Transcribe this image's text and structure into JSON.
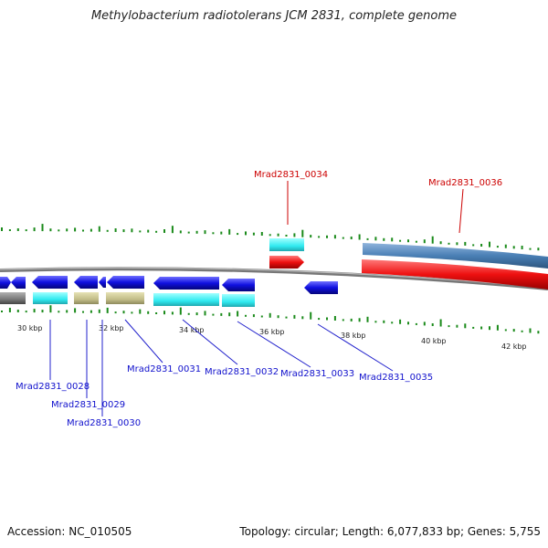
{
  "title": "Methylobacterium radiotolerans JCM 2831, complete genome",
  "footer": {
    "accession": "Accession: NC_010505",
    "summary": "Topology: circular; Length: 6,077,833 bp; Genes: 5,755"
  },
  "colors": {
    "forward_gene": "#1010e0",
    "cds_cyan": "#33ecf2",
    "cds_khaki": "#c6c28c",
    "cds_gray": "#7a7a7a",
    "highlight_red": "#ee1010",
    "steelblue": "#4a7fb5",
    "gc_tick": "#1a8a1a",
    "label_blue": "#1010cc",
    "label_red": "#cc0000",
    "axis": "#888888"
  },
  "axis_ticks": [
    {
      "label": "30 kbp"
    },
    {
      "label": "32 kbp"
    },
    {
      "label": "34 kbp"
    },
    {
      "label": "36 kbp"
    },
    {
      "label": "38 kbp"
    },
    {
      "label": "40 kbp"
    },
    {
      "label": "42 kbp"
    }
  ],
  "gene_labels": [
    {
      "text": "Mrad2831_0028",
      "color": "blue"
    },
    {
      "text": "Mrad2831_0029",
      "color": "blue"
    },
    {
      "text": "Mrad2831_0030",
      "color": "blue"
    },
    {
      "text": "Mrad2831_0031",
      "color": "blue"
    },
    {
      "text": "Mrad2831_0032",
      "color": "blue"
    },
    {
      "text": "Mrad2831_0033",
      "color": "blue"
    },
    {
      "text": "Mrad2831_0035",
      "color": "blue"
    },
    {
      "text": "Mrad2831_0034",
      "color": "red"
    },
    {
      "text": "Mrad2831_0036",
      "color": "red"
    }
  ]
}
